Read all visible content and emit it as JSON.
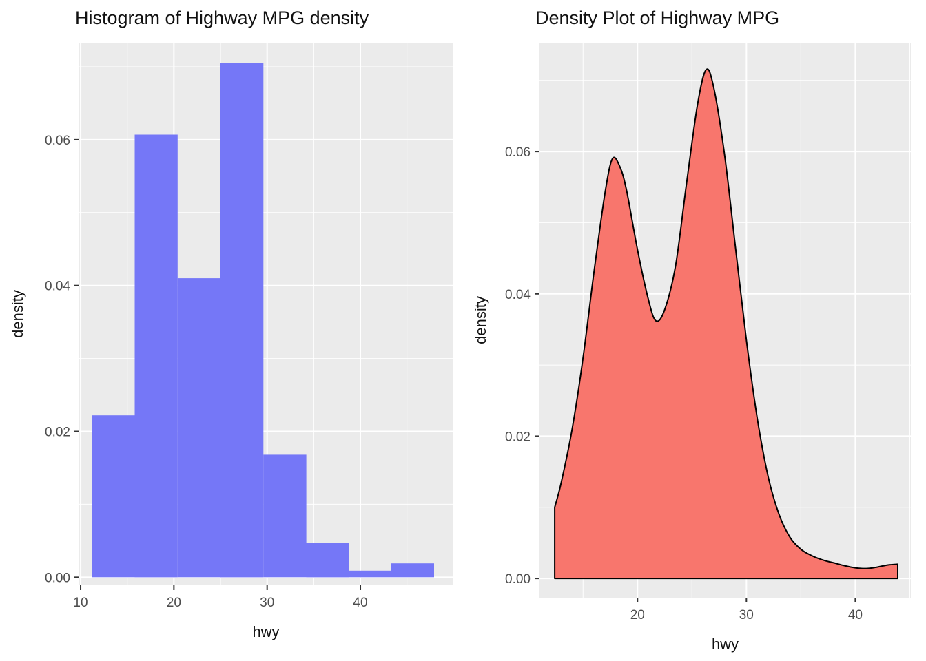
{
  "theme": {
    "page_bg": "#FFFFFF",
    "panel_bg": "#EBEBEB",
    "grid_major": "#FFFFFF",
    "grid_minor": "#FFFFFF",
    "tick_color": "#333333",
    "tick_label_color": "#4D4D4D",
    "text_color": "#111111"
  },
  "chart_data": [
    {
      "type": "bar",
      "variant": "histogram-density",
      "title": "Histogram of Highway MPG density",
      "xlabel": "hwy",
      "ylabel": "density",
      "xlim": [
        9.85,
        49.9
      ],
      "ylim": [
        -0.0011,
        0.0733
      ],
      "grid": true,
      "legend": "none",
      "x_ticks": [
        10,
        20,
        30,
        40
      ],
      "x_tick_labels": [
        "10",
        "20",
        "30",
        "40"
      ],
      "x_minor": [
        15,
        25,
        35,
        45
      ],
      "y_ticks": [
        0,
        0.02,
        0.04,
        0.06
      ],
      "y_tick_labels": [
        "0.00",
        "0.02",
        "0.04",
        "0.06"
      ],
      "y_minor": [
        0.01,
        0.03,
        0.05,
        0.07
      ],
      "bar_fill": "#7577F7",
      "bin_edges": [
        11.2,
        15.8,
        20.4,
        25.0,
        29.6,
        34.2,
        38.8,
        43.3,
        47.9
      ],
      "densities": [
        0.0222,
        0.0607,
        0.041,
        0.0705,
        0.0168,
        0.0047,
        0.0009,
        0.0019
      ]
    },
    {
      "type": "area",
      "variant": "density",
      "title": "Density Plot of Highway MPG",
      "xlabel": "hwy",
      "ylabel": "density",
      "xlim": [
        11.0,
        45.1
      ],
      "ylim": [
        -0.0027,
        0.0753
      ],
      "grid": true,
      "legend": "none",
      "x_ticks": [
        20,
        30,
        40
      ],
      "x_tick_labels": [
        "20",
        "30",
        "40"
      ],
      "x_minor": [
        15,
        25,
        35,
        45
      ],
      "y_ticks": [
        0,
        0.02,
        0.04,
        0.06
      ],
      "y_tick_labels": [
        "0.00",
        "0.02",
        "0.04",
        "0.06"
      ],
      "y_minor": [
        0.01,
        0.03,
        0.05,
        0.07
      ],
      "fill": "#F8766D",
      "stroke": "#000000",
      "points": [
        [
          12.4,
          0.01
        ],
        [
          13.0,
          0.0135
        ],
        [
          14.0,
          0.021
        ],
        [
          15.0,
          0.031
        ],
        [
          16.0,
          0.043
        ],
        [
          17.0,
          0.054
        ],
        [
          17.7,
          0.059
        ],
        [
          18.4,
          0.0578
        ],
        [
          19.0,
          0.0545
        ],
        [
          20.0,
          0.0462
        ],
        [
          21.0,
          0.0392
        ],
        [
          21.7,
          0.0362
        ],
        [
          22.5,
          0.0378
        ],
        [
          23.5,
          0.044
        ],
        [
          24.5,
          0.0555
        ],
        [
          25.5,
          0.0665
        ],
        [
          26.3,
          0.0715
        ],
        [
          27.0,
          0.069
        ],
        [
          28.0,
          0.0595
        ],
        [
          29.0,
          0.0465
        ],
        [
          30.0,
          0.0335
        ],
        [
          31.0,
          0.0225
        ],
        [
          32.0,
          0.0143
        ],
        [
          33.0,
          0.009
        ],
        [
          34.0,
          0.0058
        ],
        [
          35.0,
          0.0041
        ],
        [
          36.0,
          0.0032
        ],
        [
          37.0,
          0.0026
        ],
        [
          38.0,
          0.0022
        ],
        [
          39.0,
          0.0018
        ],
        [
          40.0,
          0.0015
        ],
        [
          41.0,
          0.0014
        ],
        [
          42.0,
          0.0016
        ],
        [
          43.0,
          0.0019
        ],
        [
          43.9,
          0.002
        ]
      ]
    }
  ]
}
